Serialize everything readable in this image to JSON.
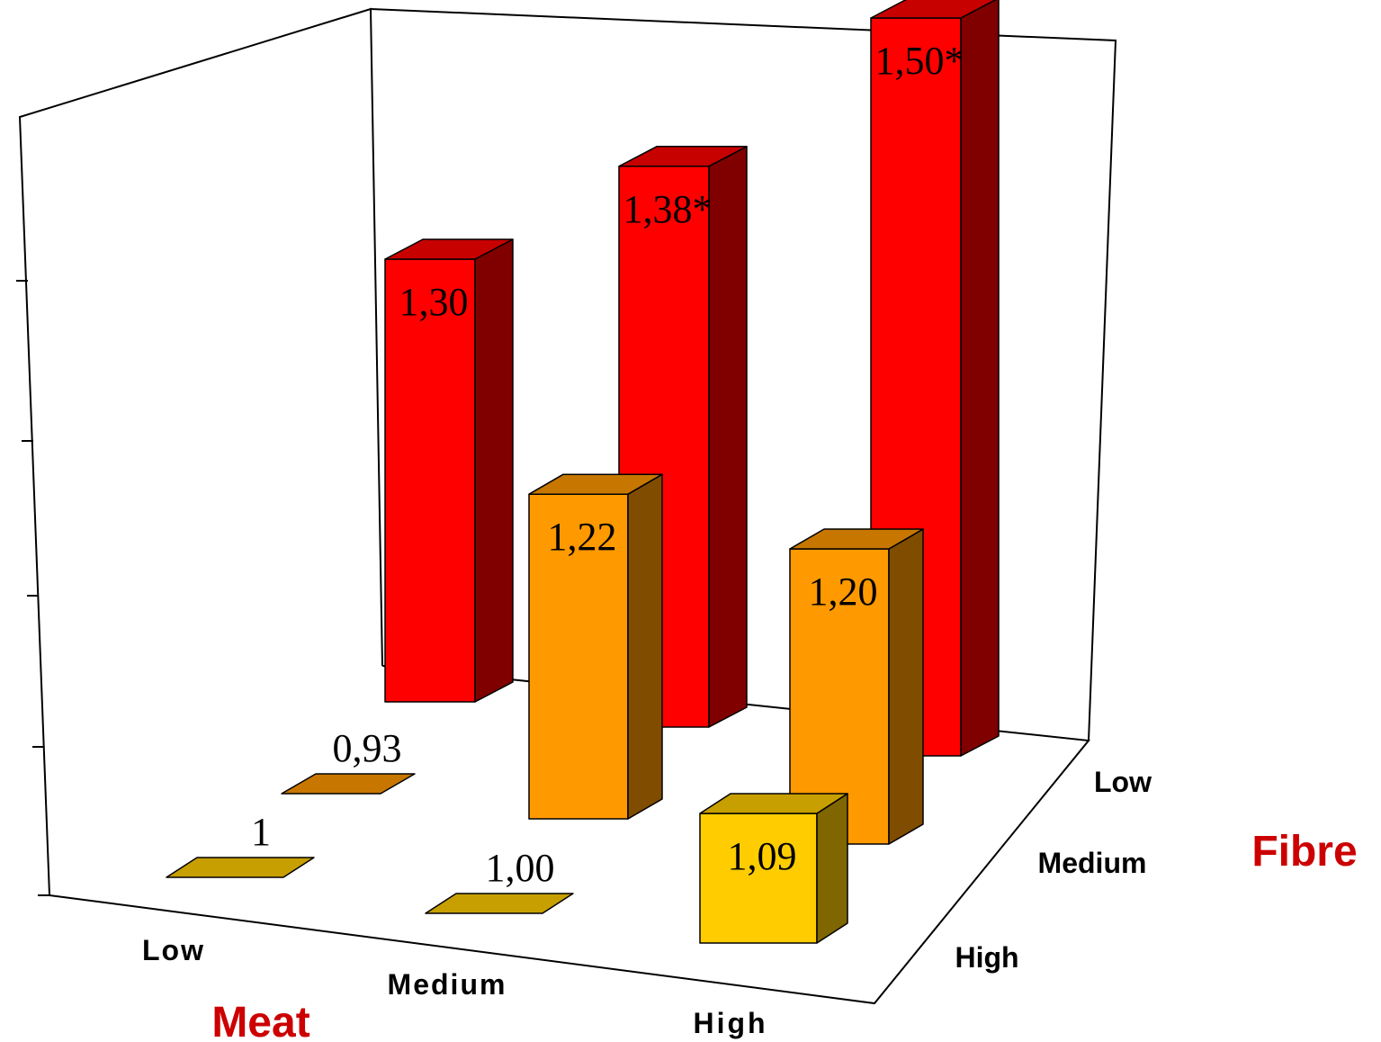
{
  "chart_data": {
    "type": "bar",
    "subtype": "3d-bar",
    "x_axis": {
      "title": "Meat",
      "categories": [
        "Low",
        "Medium",
        "High"
      ]
    },
    "depth_axis": {
      "title": "Fibre",
      "categories": [
        "Low",
        "Medium",
        "High"
      ]
    },
    "z_axis": {
      "range": [
        1,
        1.5
      ],
      "tick_count": 4,
      "tick_labels_shown": false
    },
    "cells": [
      {
        "meat": "Low",
        "fibre": "High",
        "value": 1,
        "label": "1"
      },
      {
        "meat": "Medium",
        "fibre": "High",
        "value": 1.0,
        "label": "1,00"
      },
      {
        "meat": "High",
        "fibre": "High",
        "value": 1.09,
        "label": "1,09"
      },
      {
        "meat": "Low",
        "fibre": "Medium",
        "value": 0.93,
        "label": "0,93"
      },
      {
        "meat": "Medium",
        "fibre": "Medium",
        "value": 1.22,
        "label": "1,22"
      },
      {
        "meat": "High",
        "fibre": "Medium",
        "value": 1.2,
        "label": "1,20"
      },
      {
        "meat": "Low",
        "fibre": "Low",
        "value": 1.3,
        "label": "1,30"
      },
      {
        "meat": "Medium",
        "fibre": "Low",
        "value": 1.38,
        "label": "1,38*"
      },
      {
        "meat": "High",
        "fibre": "Low",
        "value": 1.5,
        "label": "1,50*"
      }
    ],
    "colors": {
      "fibre_low": "#ff0000",
      "fibre_medium": "#ff9900",
      "fibre_high": "#ffcc00"
    },
    "grid": false,
    "legend": "none"
  }
}
